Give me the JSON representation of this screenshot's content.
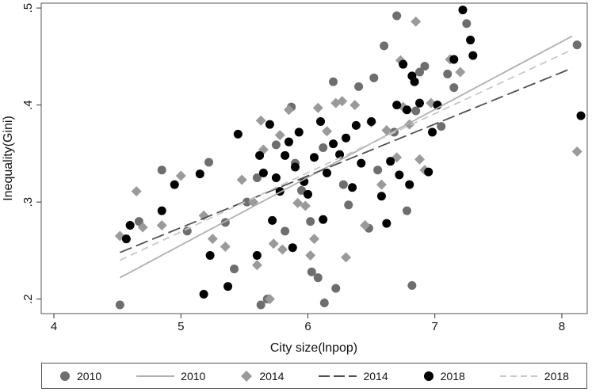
{
  "chart_data": {
    "type": "scatter",
    "xlabel": "City size(lnpop)",
    "ylabel": "Inequality(Gini)",
    "xlim": [
      3.9,
      8.2
    ],
    "ylim": [
      0.185,
      0.505
    ],
    "xticks": [
      4,
      5,
      6,
      7,
      8
    ],
    "yticks": [
      0.2,
      0.3,
      0.4,
      0.5
    ],
    "ytick_labels": [
      ".2",
      ".3",
      ".4",
      ".5"
    ],
    "grid": false,
    "legend_position": "bottom",
    "series": [
      {
        "name": "2010",
        "kind": "points",
        "marker": "circle",
        "color": "#6e6e6e",
        "points": [
          [
            4.52,
            0.194
          ],
          [
            4.67,
            0.28
          ],
          [
            4.85,
            0.333
          ],
          [
            5.05,
            0.27
          ],
          [
            5.22,
            0.341
          ],
          [
            5.35,
            0.279
          ],
          [
            5.42,
            0.231
          ],
          [
            5.52,
            0.3
          ],
          [
            5.6,
            0.325
          ],
          [
            5.63,
            0.194
          ],
          [
            5.68,
            0.2
          ],
          [
            5.75,
            0.359
          ],
          [
            5.82,
            0.27
          ],
          [
            5.87,
            0.398
          ],
          [
            5.9,
            0.34
          ],
          [
            5.95,
            0.312
          ],
          [
            6.02,
            0.28
          ],
          [
            6.03,
            0.228
          ],
          [
            6.08,
            0.222
          ],
          [
            6.12,
            0.356
          ],
          [
            6.13,
            0.196
          ],
          [
            6.2,
            0.424
          ],
          [
            6.22,
            0.211
          ],
          [
            6.28,
            0.318
          ],
          [
            6.32,
            0.297
          ],
          [
            6.4,
            0.419
          ],
          [
            6.48,
            0.273
          ],
          [
            6.52,
            0.428
          ],
          [
            6.55,
            0.333
          ],
          [
            6.6,
            0.461
          ],
          [
            6.68,
            0.372
          ],
          [
            6.7,
            0.492
          ],
          [
            6.78,
            0.291
          ],
          [
            6.82,
            0.214
          ],
          [
            6.85,
            0.394
          ],
          [
            6.88,
            0.434
          ],
          [
            6.92,
            0.44
          ],
          [
            7.05,
            0.378
          ],
          [
            7.1,
            0.432
          ],
          [
            7.15,
            0.418
          ],
          [
            7.25,
            0.484
          ],
          [
            8.12,
            0.462
          ]
        ]
      },
      {
        "name": "2010",
        "kind": "fit",
        "color": "#b0b0b0",
        "dash": "solid",
        "line": [
          [
            4.52,
            0.222
          ],
          [
            8.08,
            0.471
          ]
        ]
      },
      {
        "name": "2014",
        "kind": "points",
        "marker": "diamond",
        "color": "#9a9a9a",
        "points": [
          [
            4.52,
            0.265
          ],
          [
            4.65,
            0.311
          ],
          [
            4.7,
            0.274
          ],
          [
            4.85,
            0.276
          ],
          [
            5.0,
            0.327
          ],
          [
            5.18,
            0.286
          ],
          [
            5.25,
            0.262
          ],
          [
            5.35,
            0.254
          ],
          [
            5.48,
            0.323
          ],
          [
            5.57,
            0.3
          ],
          [
            5.6,
            0.235
          ],
          [
            5.63,
            0.384
          ],
          [
            5.65,
            0.354
          ],
          [
            5.7,
            0.2
          ],
          [
            5.73,
            0.257
          ],
          [
            5.78,
            0.369
          ],
          [
            5.8,
            0.251
          ],
          [
            5.85,
            0.395
          ],
          [
            5.92,
            0.299
          ],
          [
            5.98,
            0.296
          ],
          [
            6.02,
            0.245
          ],
          [
            6.05,
            0.262
          ],
          [
            6.08,
            0.397
          ],
          [
            6.15,
            0.373
          ],
          [
            6.22,
            0.402
          ],
          [
            6.27,
            0.404
          ],
          [
            6.3,
            0.243
          ],
          [
            6.37,
            0.4
          ],
          [
            6.45,
            0.276
          ],
          [
            6.5,
            0.382
          ],
          [
            6.58,
            0.318
          ],
          [
            6.62,
            0.374
          ],
          [
            6.7,
            0.346
          ],
          [
            6.73,
            0.446
          ],
          [
            6.75,
            0.398
          ],
          [
            6.8,
            0.38
          ],
          [
            6.85,
            0.486
          ],
          [
            6.88,
            0.344
          ],
          [
            6.92,
            0.333
          ],
          [
            6.97,
            0.402
          ],
          [
            7.02,
            0.4
          ],
          [
            7.12,
            0.447
          ],
          [
            7.2,
            0.434
          ],
          [
            8.12,
            0.352
          ]
        ]
      },
      {
        "name": "2014",
        "kind": "fit",
        "color": "#505050",
        "dash": "longdash",
        "line": [
          [
            4.52,
            0.248
          ],
          [
            8.08,
            0.438
          ]
        ]
      },
      {
        "name": "2018",
        "kind": "points",
        "marker": "circle",
        "color": "#000000",
        "points": [
          [
            4.57,
            0.262
          ],
          [
            4.6,
            0.276
          ],
          [
            4.85,
            0.291
          ],
          [
            4.95,
            0.318
          ],
          [
            5.15,
            0.329
          ],
          [
            5.18,
            0.205
          ],
          [
            5.23,
            0.245
          ],
          [
            5.37,
            0.213
          ],
          [
            5.45,
            0.37
          ],
          [
            5.6,
            0.245
          ],
          [
            5.62,
            0.348
          ],
          [
            5.65,
            0.33
          ],
          [
            5.7,
            0.38
          ],
          [
            5.72,
            0.281
          ],
          [
            5.75,
            0.325
          ],
          [
            5.78,
            0.311
          ],
          [
            5.82,
            0.348
          ],
          [
            5.85,
            0.362
          ],
          [
            5.88,
            0.253
          ],
          [
            5.9,
            0.336
          ],
          [
            5.93,
            0.372
          ],
          [
            5.97,
            0.321
          ],
          [
            6.0,
            0.308
          ],
          [
            6.05,
            0.346
          ],
          [
            6.1,
            0.383
          ],
          [
            6.12,
            0.282
          ],
          [
            6.15,
            0.33
          ],
          [
            6.2,
            0.36
          ],
          [
            6.25,
            0.349
          ],
          [
            6.3,
            0.366
          ],
          [
            6.35,
            0.315
          ],
          [
            6.38,
            0.379
          ],
          [
            6.42,
            0.34
          ],
          [
            6.5,
            0.383
          ],
          [
            6.58,
            0.306
          ],
          [
            6.62,
            0.278
          ],
          [
            6.65,
            0.342
          ],
          [
            6.7,
            0.4
          ],
          [
            6.72,
            0.328
          ],
          [
            6.75,
            0.442
          ],
          [
            6.78,
            0.395
          ],
          [
            6.8,
            0.318
          ],
          [
            6.82,
            0.43
          ],
          [
            6.84,
            0.424
          ],
          [
            6.88,
            0.402
          ],
          [
            6.95,
            0.331
          ],
          [
            6.98,
            0.372
          ],
          [
            7.02,
            0.4
          ],
          [
            7.15,
            0.447
          ],
          [
            7.22,
            0.498
          ],
          [
            7.28,
            0.467
          ],
          [
            7.3,
            0.451
          ],
          [
            8.15,
            0.389
          ]
        ]
      },
      {
        "name": "2018",
        "kind": "fit",
        "color": "#c8c8c8",
        "dash": "dash",
        "line": [
          [
            4.52,
            0.24
          ],
          [
            8.08,
            0.457
          ]
        ]
      }
    ]
  }
}
